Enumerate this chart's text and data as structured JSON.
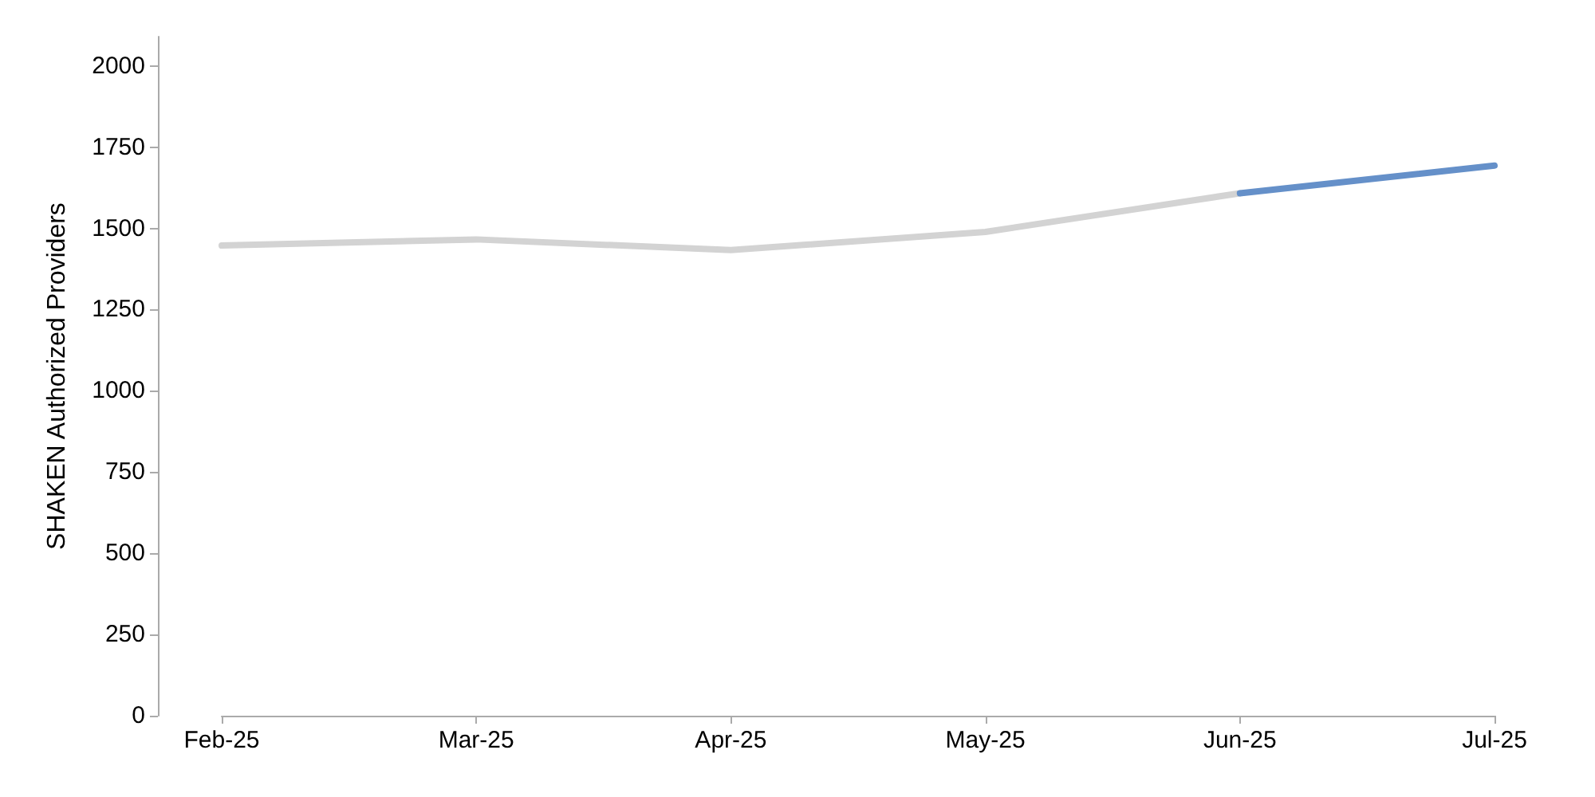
{
  "chart_data": {
    "type": "line",
    "ylabel": "SHAKEN Authorized Providers",
    "categories": [
      "Feb-25",
      "Mar-25",
      "Apr-25",
      "May-25",
      "Jun-25",
      "Jul-25"
    ],
    "series": [
      {
        "color": "#d3d3d3",
        "values": [
          1447,
          1466,
          1433,
          1489,
          1608,
          null
        ]
      },
      {
        "color": "#6590c9",
        "values": [
          null,
          null,
          null,
          null,
          1608,
          1693
        ]
      }
    ],
    "ylim": [
      0,
      2090
    ],
    "yticks": [
      0,
      250,
      500,
      750,
      1000,
      1250,
      1500,
      1750,
      2000
    ],
    "grid": false,
    "marker": "none",
    "line_style": "solid"
  }
}
